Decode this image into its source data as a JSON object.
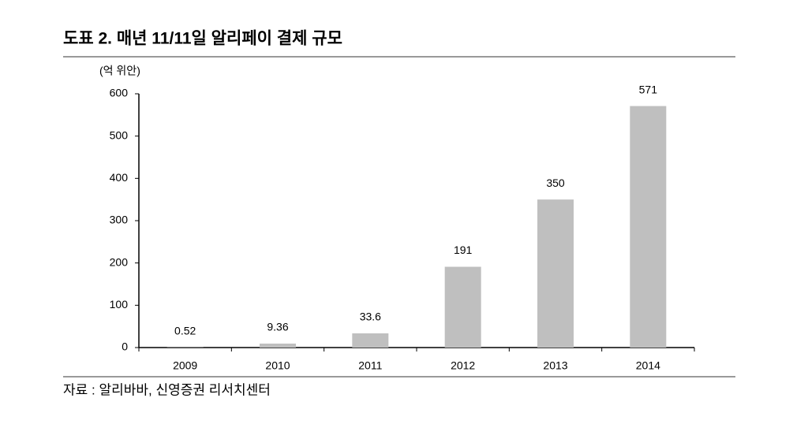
{
  "chart_data": {
    "type": "bar",
    "title": "도표 2. 매년 11/11일 알리페이 결제 규모",
    "y_label": "(억 위안)",
    "source": "자료 : 알리바바, 신영증권 리서치센터",
    "categories": [
      "2009",
      "2010",
      "2011",
      "2012",
      "2013",
      "2014"
    ],
    "values": [
      0.52,
      9.36,
      33.6,
      191,
      350,
      571
    ],
    "color": "#bfbfbf",
    "ylim": [
      0,
      600
    ],
    "yticks": [
      0,
      100,
      200,
      300,
      400,
      500,
      600
    ],
    "grid": false,
    "data_labels": true
  }
}
